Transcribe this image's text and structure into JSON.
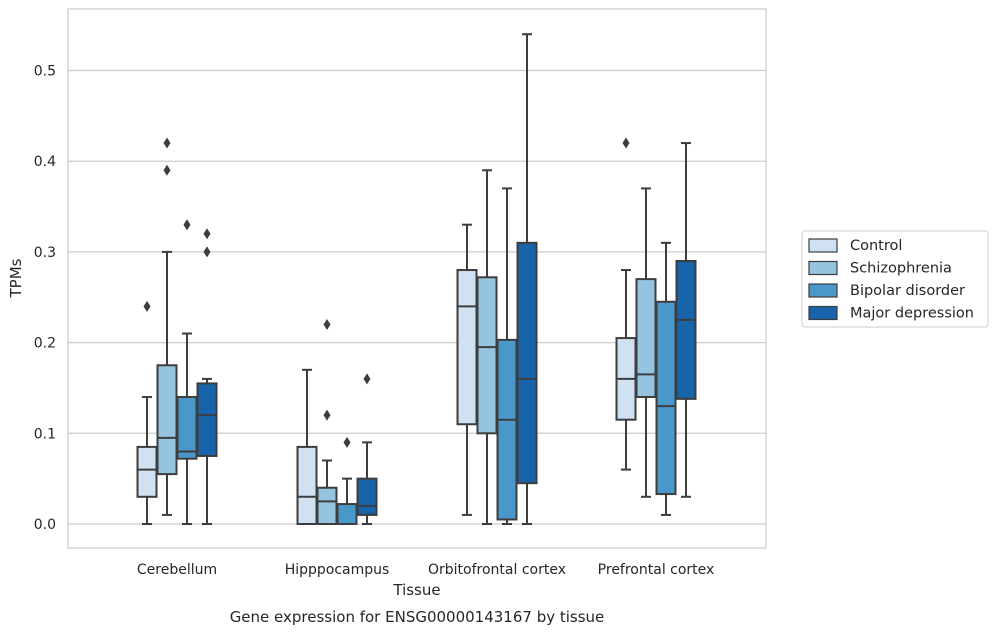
{
  "chart_data": {
    "type": "box",
    "xlabel": "Tissue",
    "ylabel": "TPMs",
    "caption": "Gene expression for ENSG00000143167 by tissue",
    "ylim": [
      -0.026,
      0.56
    ],
    "yticks": [
      0.0,
      0.1,
      0.2,
      0.3,
      0.4,
      0.5
    ],
    "ytick_labels": [
      "0.0",
      "0.1",
      "0.2",
      "0.3",
      "0.4",
      "0.5"
    ],
    "grid": "horizontal",
    "legend_position": "right",
    "categories": [
      "Cerebellum",
      "Hipppocampus",
      "Orbitofrontal cortex",
      "Prefrontal cortex"
    ],
    "series": [
      {
        "name": "Control",
        "color": "#d0e1f2",
        "boxes": [
          {
            "whislo": 0.0,
            "q1": 0.03,
            "med": 0.06,
            "q3": 0.085,
            "whishi": 0.14,
            "fliers": [
              0.24
            ]
          },
          {
            "whislo": 0.0,
            "q1": 0.0,
            "med": 0.03,
            "q3": 0.085,
            "whishi": 0.17,
            "fliers": []
          },
          {
            "whislo": 0.01,
            "q1": 0.11,
            "med": 0.24,
            "q3": 0.28,
            "whishi": 0.33,
            "fliers": []
          },
          {
            "whislo": 0.06,
            "q1": 0.115,
            "med": 0.16,
            "q3": 0.205,
            "whishi": 0.28,
            "fliers": [
              0.42
            ]
          }
        ]
      },
      {
        "name": "Schizophrenia",
        "color": "#94c4df",
        "boxes": [
          {
            "whislo": 0.01,
            "q1": 0.055,
            "med": 0.095,
            "q3": 0.175,
            "whishi": 0.3,
            "fliers": [
              0.39,
              0.42
            ]
          },
          {
            "whislo": 0.0,
            "q1": 0.0,
            "med": 0.025,
            "q3": 0.04,
            "whishi": 0.07,
            "fliers": [
              0.12,
              0.22
            ]
          },
          {
            "whislo": 0.0,
            "q1": 0.1,
            "med": 0.195,
            "q3": 0.272,
            "whishi": 0.39,
            "fliers": []
          },
          {
            "whislo": 0.03,
            "q1": 0.14,
            "med": 0.165,
            "q3": 0.27,
            "whishi": 0.37,
            "fliers": []
          }
        ]
      },
      {
        "name": "Bipolar disorder",
        "color": "#4a98c9",
        "boxes": [
          {
            "whislo": 0.0,
            "q1": 0.072,
            "med": 0.08,
            "q3": 0.14,
            "whishi": 0.21,
            "fliers": [
              0.33
            ]
          },
          {
            "whislo": 0.0,
            "q1": 0.0,
            "med": 0.0,
            "q3": 0.022,
            "whishi": 0.05,
            "fliers": [
              0.09
            ]
          },
          {
            "whislo": 0.0,
            "q1": 0.005,
            "med": 0.115,
            "q3": 0.203,
            "whishi": 0.37,
            "fliers": []
          },
          {
            "whislo": 0.01,
            "q1": 0.033,
            "med": 0.13,
            "q3": 0.245,
            "whishi": 0.31,
            "fliers": []
          }
        ]
      },
      {
        "name": "Major depression",
        "color": "#1764ab",
        "boxes": [
          {
            "whislo": 0.0,
            "q1": 0.075,
            "med": 0.12,
            "q3": 0.155,
            "whishi": 0.16,
            "fliers": [
              0.3,
              0.32
            ]
          },
          {
            "whislo": 0.0,
            "q1": 0.01,
            "med": 0.02,
            "q3": 0.05,
            "whishi": 0.09,
            "fliers": [
              0.16
            ]
          },
          {
            "whislo": 0.0,
            "q1": 0.045,
            "med": 0.16,
            "q3": 0.31,
            "whishi": 0.54,
            "fliers": []
          },
          {
            "whislo": 0.03,
            "q1": 0.138,
            "med": 0.225,
            "q3": 0.29,
            "whishi": 0.42,
            "fliers": []
          }
        ]
      }
    ]
  }
}
